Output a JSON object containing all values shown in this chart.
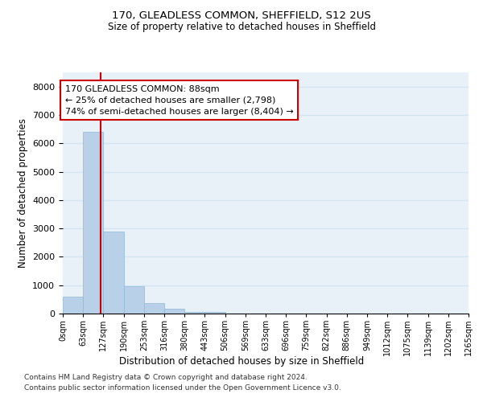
{
  "title1": "170, GLEADLESS COMMON, SHEFFIELD, S12 2US",
  "title2": "Size of property relative to detached houses in Sheffield",
  "xlabel": "Distribution of detached houses by size in Sheffield",
  "ylabel": "Number of detached properties",
  "bar_values": [
    600,
    6400,
    2900,
    950,
    360,
    160,
    70,
    50,
    0,
    0,
    0,
    0,
    0,
    0,
    0,
    0,
    0,
    0,
    0,
    0
  ],
  "bin_labels": [
    "0sqm",
    "63sqm",
    "127sqm",
    "190sqm",
    "253sqm",
    "316sqm",
    "380sqm",
    "443sqm",
    "506sqm",
    "569sqm",
    "633sqm",
    "696sqm",
    "759sqm",
    "822sqm",
    "886sqm",
    "949sqm",
    "1012sqm",
    "1075sqm",
    "1139sqm",
    "1202sqm",
    "1265sqm"
  ],
  "bar_color": "#b8d0e8",
  "bar_edge_color": "#8fb8d8",
  "grid_color": "#d0e4f4",
  "background_color": "#e8f0f8",
  "vline_x": 1.35,
  "vline_color": "#cc0000",
  "annotation_line1": "170 GLEADLESS COMMON: 88sqm",
  "annotation_line2": "← 25% of detached houses are smaller (2,798)",
  "annotation_line3": "74% of semi-detached houses are larger (8,404) →",
  "annotation_box_color": "#cc0000",
  "ylim": [
    0,
    8500
  ],
  "yticks": [
    0,
    1000,
    2000,
    3000,
    4000,
    5000,
    6000,
    7000,
    8000
  ],
  "footer1": "Contains HM Land Registry data © Crown copyright and database right 2024.",
  "footer2": "Contains public sector information licensed under the Open Government Licence v3.0."
}
